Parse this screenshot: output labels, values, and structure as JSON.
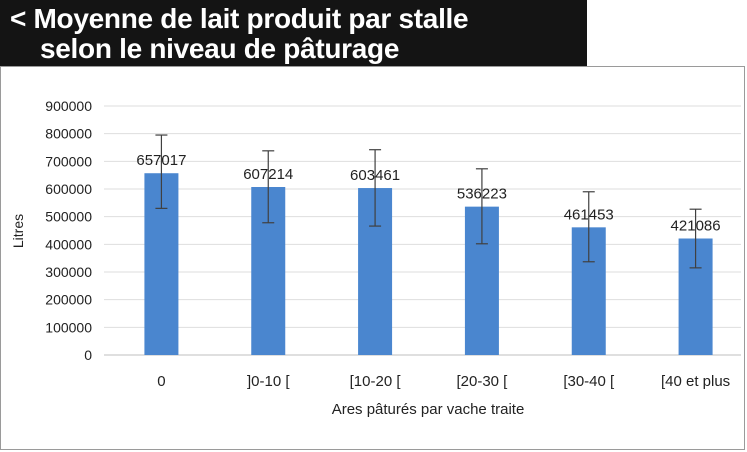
{
  "title": {
    "line1": "< Moyenne de lait produit par stalle",
    "line2": "selon le niveau de pâturage"
  },
  "chart_data": {
    "type": "bar",
    "categories": [
      "0",
      "]0-10 [",
      "[10-20 [",
      "[20-30 [",
      "[30-40 [",
      "[40 et plus"
    ],
    "values": [
      657017,
      607214,
      603461,
      536223,
      461453,
      421086
    ],
    "data_labels": [
      "657017",
      "607214",
      "603461",
      "536223",
      "461453",
      "421086"
    ],
    "error_bars": [
      {
        "low": 530000,
        "high": 795000
      },
      {
        "low": 478000,
        "high": 738000
      },
      {
        "low": 466000,
        "high": 742000
      },
      {
        "low": 402000,
        "high": 673000
      },
      {
        "low": 337000,
        "high": 590000
      },
      {
        "low": 315000,
        "high": 527000
      }
    ],
    "xlabel": "Ares pâturés par vache traite",
    "ylabel": "Litres",
    "ylim": [
      0,
      900000
    ],
    "yticks": [
      0,
      100000,
      200000,
      300000,
      400000,
      500000,
      600000,
      700000,
      800000,
      900000
    ],
    "bar_color": "#4a86cf",
    "grid": true
  }
}
